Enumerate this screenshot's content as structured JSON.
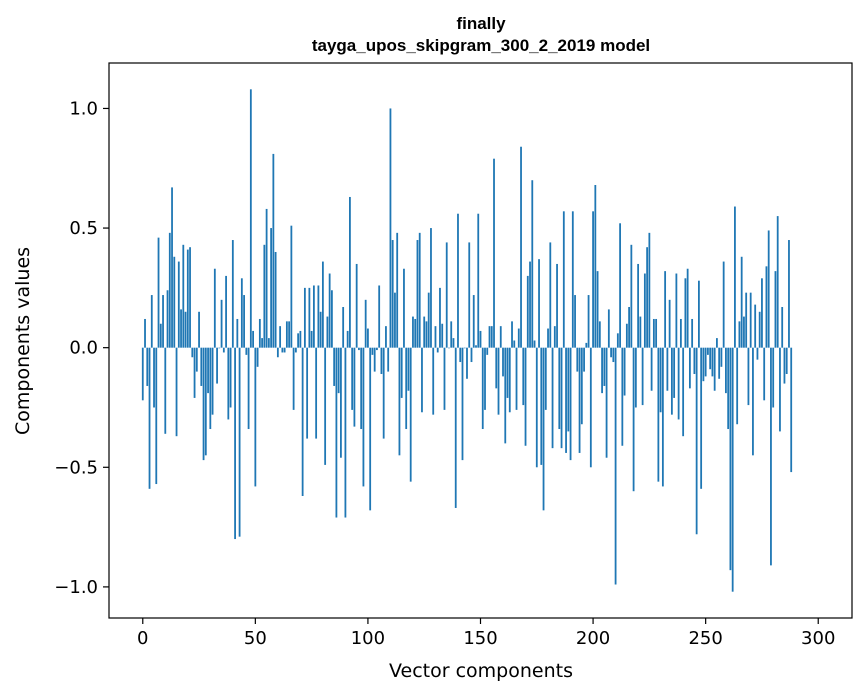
{
  "chart_data": {
    "type": "bar",
    "title": "finally",
    "subtitle": "tayga_upos_skipgram_300_2_2019 model",
    "xlabel": "Vector components",
    "ylabel": "Components values",
    "xlim": [
      -15,
      315
    ],
    "ylim": [
      -1.13,
      1.19
    ],
    "x_ticks": [
      0,
      50,
      100,
      150,
      200,
      250,
      300
    ],
    "x_tick_labels": [
      "0",
      "50",
      "100",
      "150",
      "200",
      "250",
      "300"
    ],
    "y_ticks": [
      -1.0,
      -0.5,
      0.0,
      0.5,
      1.0
    ],
    "y_tick_labels": [
      "−1.0",
      "−0.5",
      "0.0",
      "0.5",
      "1.0"
    ],
    "bar_color": "#1f77b4",
    "grid": false,
    "values": [
      -0.22,
      0.12,
      -0.16,
      -0.59,
      0.22,
      -0.25,
      -0.57,
      0.46,
      0.1,
      0.22,
      -0.36,
      0.24,
      0.48,
      0.67,
      0.38,
      -0.37,
      0.36,
      0.16,
      0.43,
      0.15,
      0.41,
      0.42,
      -0.04,
      -0.21,
      -0.1,
      0.15,
      -0.16,
      -0.47,
      -0.45,
      -0.19,
      -0.34,
      -0.28,
      0.33,
      -0.15,
      0.0,
      0.2,
      -0.02,
      0.3,
      -0.3,
      -0.25,
      0.45,
      -0.8,
      0.12,
      -0.79,
      0.29,
      0.22,
      -0.03,
      -0.34,
      1.08,
      0.07,
      -0.58,
      -0.08,
      0.12,
      0.04,
      0.43,
      0.58,
      0.04,
      0.5,
      0.81,
      0.4,
      -0.04,
      0.09,
      -0.02,
      -0.02,
      0.11,
      0.11,
      0.51,
      -0.26,
      -0.02,
      0.06,
      0.07,
      -0.62,
      0.25,
      -0.38,
      0.25,
      0.07,
      0.26,
      -0.38,
      0.26,
      0.15,
      0.36,
      -0.49,
      0.13,
      0.31,
      0.24,
      -0.16,
      -0.71,
      -0.19,
      -0.46,
      0.17,
      -0.71,
      0.07,
      0.63,
      -0.26,
      -0.33,
      0.35,
      -0.01,
      -0.34,
      -0.58,
      0.2,
      0.08,
      -0.68,
      -0.03,
      -0.1,
      -0.01,
      0.26,
      -0.11,
      -0.38,
      0.09,
      -0.1,
      1.0,
      0.45,
      0.23,
      0.48,
      -0.45,
      -0.21,
      0.33,
      -0.34,
      -0.18,
      -0.56,
      0.13,
      0.12,
      0.45,
      0.48,
      -0.27,
      0.13,
      0.11,
      0.23,
      0.5,
      -0.28,
      0.09,
      -0.02,
      0.25,
      0.1,
      -0.26,
      0.44,
      0.0,
      0.11,
      0.04,
      -0.67,
      0.56,
      -0.06,
      -0.47,
      0.0,
      -0.13,
      0.44,
      -0.06,
      0.22,
      0.01,
      0.56,
      0.07,
      -0.34,
      -0.26,
      -0.03,
      0.09,
      0.09,
      0.79,
      -0.17,
      -0.28,
      0.09,
      -0.12,
      -0.4,
      -0.21,
      -0.27,
      0.11,
      0.03,
      -0.26,
      0.08,
      0.84,
      -0.24,
      -0.41,
      0.3,
      0.36,
      0.7,
      0.03,
      -0.5,
      0.37,
      -0.49,
      -0.68,
      -0.26,
      0.08,
      0.44,
      -0.42,
      0.09,
      0.35,
      -0.34,
      -0.42,
      0.57,
      -0.44,
      -0.35,
      -0.47,
      0.57,
      0.22,
      -0.1,
      -0.44,
      -0.32,
      -0.1,
      0.02,
      0.22,
      -0.5,
      0.57,
      0.68,
      0.32,
      0.11,
      -0.19,
      -0.16,
      -0.46,
      0.16,
      -0.04,
      -0.06,
      -0.99,
      0.06,
      0.52,
      -0.41,
      -0.2,
      0.1,
      0.17,
      0.43,
      -0.6,
      -0.25,
      0.35,
      0.13,
      -0.24,
      0.31,
      0.42,
      0.48,
      -0.18,
      0.12,
      0.12,
      -0.56,
      -0.27,
      -0.58,
      0.32,
      -0.18,
      0.2,
      -0.28,
      -0.21,
      0.31,
      -0.3,
      0.12,
      -0.37,
      0.29,
      0.33,
      -0.17,
      0.12,
      -0.11,
      -0.78,
      0.28,
      -0.59,
      -0.14,
      -0.12,
      -0.03,
      -0.09,
      -0.12,
      -0.18,
      0.04,
      -0.13,
      -0.08,
      0.36,
      -0.19,
      -0.34,
      -0.93,
      -1.02,
      0.59,
      -0.32,
      0.11,
      0.38,
      0.13,
      0.23,
      -0.24,
      0.23,
      -0.45,
      0.18,
      -0.05,
      0.15,
      0.29,
      -0.22,
      0.34,
      0.49,
      -0.91,
      -0.25,
      0.32,
      0.55,
      -0.35,
      0.17,
      -0.15,
      -0.11,
      0.45,
      -0.52
    ]
  }
}
